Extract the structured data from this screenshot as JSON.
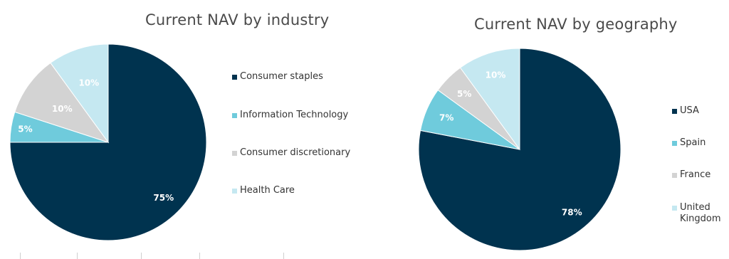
{
  "chart_data": [
    {
      "type": "pie",
      "title": "Current NAV by industry",
      "categories": [
        "Consumer staples",
        "Information Technology",
        "Consumer discretionary",
        "Health Care"
      ],
      "values": [
        75,
        5,
        10,
        10
      ],
      "labels": [
        "75%",
        "5%",
        "10%",
        "10%"
      ],
      "colors": [
        "#00334f",
        "#6fcbdc",
        "#d3d3d3",
        "#c5e8f1"
      ],
      "label_colors": [
        "#ffffff",
        "#ffffff",
        "#ffffff",
        "#ffffff"
      ],
      "legend_position": "right"
    },
    {
      "type": "pie",
      "title": "Current NAV by geography",
      "categories": [
        "USA",
        "Spain",
        "France",
        "United Kingdom"
      ],
      "values": [
        78,
        7,
        5,
        10
      ],
      "labels": [
        "78%",
        "7%",
        "5%",
        "10%"
      ],
      "colors": [
        "#00334f",
        "#6fcbdc",
        "#d3d3d3",
        "#c5e8f1"
      ],
      "label_colors": [
        "#ffffff",
        "#ffffff",
        "#ffffff",
        "#ffffff"
      ],
      "legend_position": "right"
    }
  ]
}
